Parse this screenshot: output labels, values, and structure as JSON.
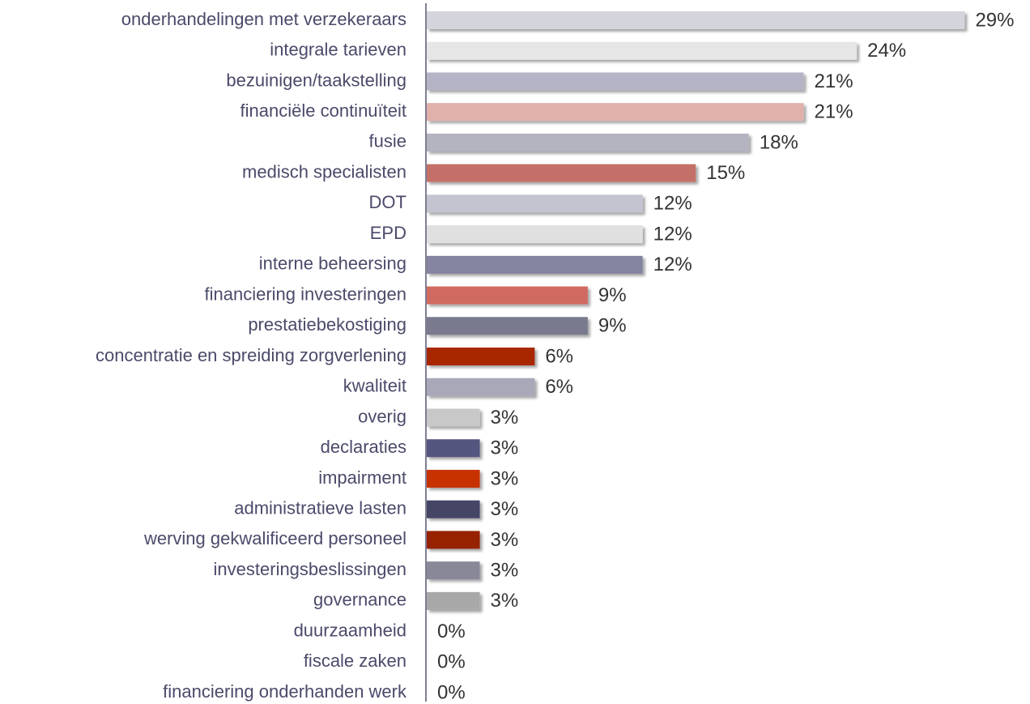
{
  "chart_data": {
    "type": "barh",
    "categories": [
      "onderhandelingen met verzekeraars",
      "integrale tarieven",
      "bezuinigen/taakstelling",
      "financiële continuïteit",
      "fusie",
      "medisch specialisten",
      "DOT",
      "EPD",
      "interne beheersing",
      "financiering investeringen",
      "prestatiebekostiging",
      "concentratie en spreiding zorgverlening",
      "kwaliteit",
      "overig",
      "declaraties",
      "impairment",
      "administratieve lasten",
      "werving gekwalificeerd personeel",
      "investeringsbeslissingen",
      "governance",
      "duurzaamheid",
      "fiscale zaken",
      "financiering onderhanden werk"
    ],
    "values": [
      29.4,
      23.5,
      20.6,
      20.6,
      17.6,
      14.7,
      11.8,
      11.8,
      11.8,
      8.8,
      8.8,
      5.9,
      5.9,
      2.9,
      2.9,
      2.9,
      2.9,
      2.9,
      2.9,
      2.9,
      0,
      0,
      0
    ],
    "value_labels": [
      "29%",
      "24%",
      "21%",
      "21%",
      "18%",
      "15%",
      "12%",
      "12%",
      "12%",
      "9%",
      "9%",
      "6%",
      "6%",
      "3%",
      "3%",
      "3%",
      "3%",
      "3%",
      "3%",
      "3%",
      "0%",
      "0%",
      "0%"
    ],
    "colors": [
      "#d4d4dc",
      "#e6e6e6",
      "#b4b4c6",
      "#e0b0aa",
      "#b4b4c0",
      "#c47068",
      "#c4c4d0",
      "#e0e0e0",
      "#8484a0",
      "#d06a60",
      "#7a7a8e",
      "#a82800",
      "#a8a8b8",
      "#c8c8c8",
      "#545480",
      "#c83200",
      "#444466",
      "#962000",
      "#888898",
      "#a8a8a8",
      "#cccccc",
      "#cccccc",
      "#cccccc"
    ]
  }
}
